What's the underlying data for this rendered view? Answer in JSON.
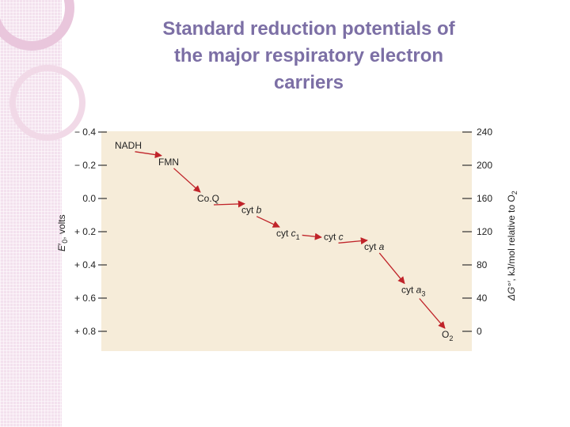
{
  "slide": {
    "title_lines": [
      "Standard reduction potentials of",
      "the major respiratory electron",
      "carriers"
    ]
  },
  "colors": {
    "title": "#7c6fa5",
    "panel": "#f6ecd9",
    "arrow": "#c0242a",
    "deco": "#e9c6dc"
  },
  "chart_data": {
    "type": "diagram",
    "left_axis": {
      "label_parts": [
        "E",
        "′",
        "0",
        ", volts"
      ],
      "ticks": [
        "− 0.4",
        "− 0.2",
        "0.0",
        "+ 0.2",
        "+ 0.4",
        "+ 0.6",
        "+ 0.8"
      ],
      "values": [
        -0.4,
        -0.2,
        0.0,
        0.2,
        0.4,
        0.6,
        0.8
      ]
    },
    "right_axis": {
      "label_parts": [
        "ΔG°′",
        ", kJ/mol relative to O",
        "2"
      ],
      "ticks": [
        "240",
        "200",
        "160",
        "120",
        "80",
        "40",
        "0"
      ]
    },
    "carriers": [
      {
        "label": "NADH",
        "sub": "",
        "potential": -0.32
      },
      {
        "label": "FMN",
        "sub": "",
        "potential": -0.22
      },
      {
        "label": "Co.Q",
        "sub": "",
        "potential": 0.0
      },
      {
        "label": "cyt ",
        "italic": "b",
        "sub": "",
        "potential": 0.07
      },
      {
        "label": "cyt ",
        "italic": "c",
        "sub": "1",
        "potential": 0.21
      },
      {
        "label": "cyt ",
        "italic": "c",
        "sub": "",
        "potential": 0.23
      },
      {
        "label": "cyt ",
        "italic": "a",
        "sub": "",
        "potential": 0.29
      },
      {
        "label": "cyt ",
        "italic": "a",
        "sub": "3",
        "potential": 0.55
      },
      {
        "label": "O",
        "sub": "2",
        "potential": 0.82
      }
    ]
  }
}
